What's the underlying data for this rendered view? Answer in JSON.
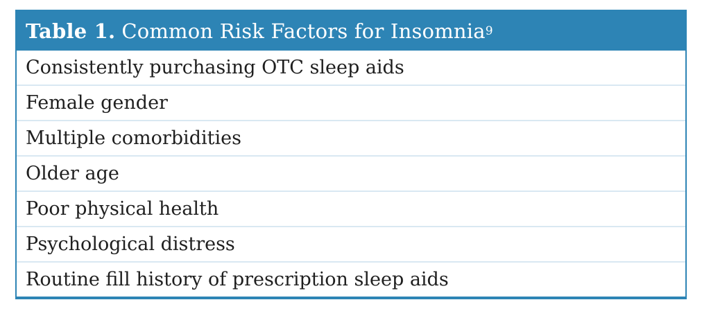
{
  "colors": {
    "accent": "#2d84b5",
    "divider": "#d9e8f2",
    "header_text": "#ffffff",
    "row_text": "#1f1f1f",
    "background": "#ffffff"
  },
  "table": {
    "title_label": "Table 1.",
    "title_text": "Common Risk Factors for Insomnia",
    "title_citation": "9",
    "rows": [
      "Consistently purchasing OTC sleep aids",
      "Female gender",
      "Multiple comorbidities",
      "Older age",
      "Poor physical health",
      "Psychological distress",
      "Routine fill history of prescription sleep aids"
    ]
  }
}
